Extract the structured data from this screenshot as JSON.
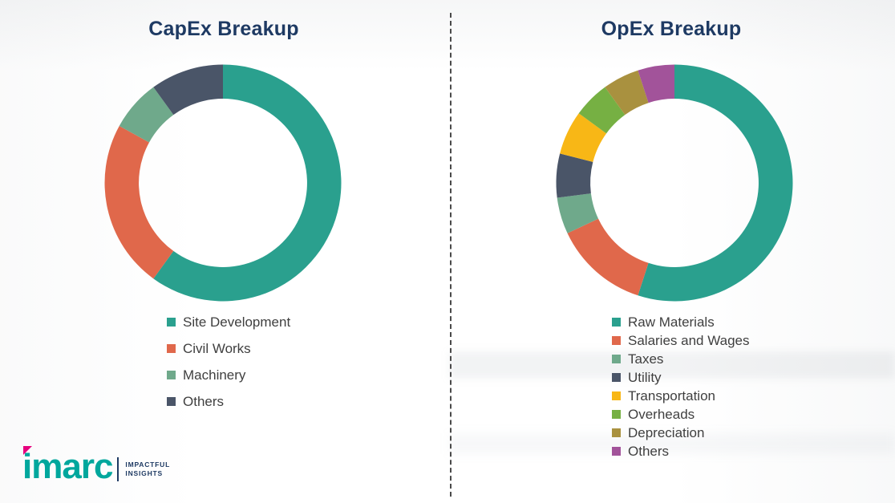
{
  "chart_data": [
    {
      "type": "pie",
      "donut": true,
      "title": "CapEx Breakup",
      "legend_position": "bottom",
      "labels": [
        "Site Development",
        "Civil Works",
        "Machinery",
        "Others"
      ],
      "values": [
        60,
        23,
        7,
        10
      ],
      "colors": [
        "#2AA08E",
        "#E0684B",
        "#6FA98B",
        "#4A5568"
      ]
    },
    {
      "type": "pie",
      "donut": true,
      "title": "OpEx Breakup",
      "legend_position": "bottom",
      "labels": [
        "Raw Materials",
        "Salaries and Wages",
        "Taxes",
        "Utility",
        "Transportation",
        "Overheads",
        "Depreciation",
        "Others"
      ],
      "values": [
        55,
        13,
        5,
        6,
        6,
        5,
        5,
        5
      ],
      "colors": [
        "#2AA08E",
        "#E0684B",
        "#6FA98B",
        "#4A5568",
        "#F8B716",
        "#76B043",
        "#A9913F",
        "#A2539A"
      ]
    }
  ],
  "logo": {
    "brand": "imarc",
    "tagline_line1": "IMPACTFUL",
    "tagline_line2": "INSIGHTS"
  },
  "brand_colors": {
    "teal": "#00A79D",
    "magenta": "#E6007E",
    "navy": "#1E3A63"
  }
}
